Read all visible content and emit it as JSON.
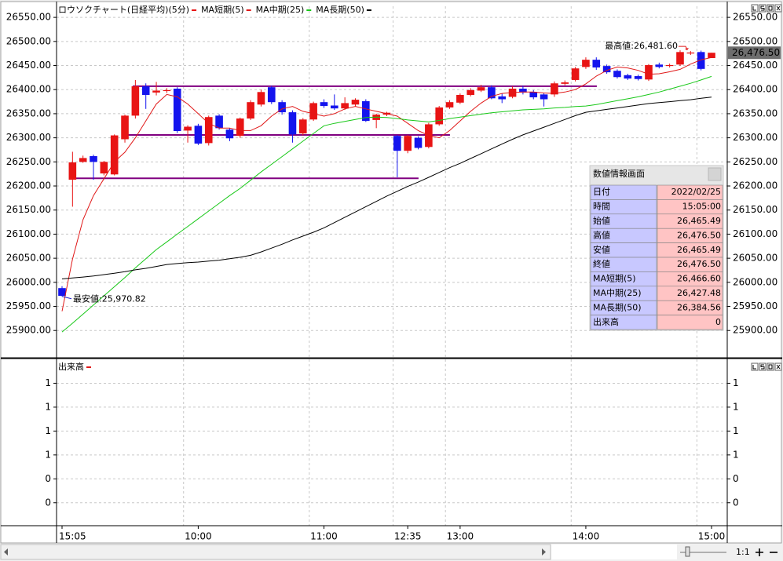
{
  "chart_data": [
    {
      "type": "candlestick",
      "title": "ロウソクチャート(日経平均)(5分)",
      "color_up": "#e81414",
      "color_down": "#1414ee",
      "categories": [
        "15:05",
        null,
        null,
        null,
        null,
        null,
        null,
        null,
        null,
        null,
        null,
        null,
        null,
        "10:00",
        null,
        null,
        null,
        null,
        null,
        null,
        null,
        null,
        null,
        null,
        null,
        "11:00",
        null,
        null,
        null,
        null,
        null,
        null,
        null,
        "12:35",
        null,
        null,
        null,
        null,
        "13:00",
        null,
        null,
        null,
        null,
        null,
        null,
        null,
        null,
        null,
        null,
        null,
        "14:00",
        null,
        null,
        null,
        null,
        null,
        null,
        null,
        null,
        null,
        null,
        null,
        "15:00"
      ],
      "open": [
        25988,
        26213,
        26250,
        26262,
        26226,
        26224,
        26297,
        26346,
        26407,
        26394,
        26397,
        26402,
        26315,
        26325,
        26289,
        26346,
        26317,
        26304,
        26340,
        26369,
        26405,
        26374,
        26353,
        26309,
        26338,
        26374,
        26367,
        26361,
        26369,
        26376,
        26337,
        26348,
        26304,
        26273,
        26300,
        26281,
        26328,
        26363,
        26373,
        26389,
        26398,
        26405,
        26386,
        26385,
        26402,
        26395,
        26390,
        26390,
        26412,
        26420,
        26447,
        26462,
        26449,
        26439,
        26430,
        26428,
        26421,
        26452,
        26449,
        26452,
        26475,
        26478,
        26465.49
      ],
      "high": [
        25992,
        26271,
        26263,
        26265,
        26252,
        26307,
        26348,
        26420,
        26413,
        26416,
        26403,
        26405,
        26326,
        26329,
        26346,
        26349,
        26320,
        26342,
        26378,
        26400,
        26408,
        26378,
        26357,
        26341,
        26375,
        26380,
        26390,
        26384,
        26382,
        26380,
        26350,
        26354,
        26306,
        26306,
        26303,
        26331,
        26366,
        26378,
        26392,
        26403,
        26410,
        26409,
        26392,
        26407,
        26408,
        26399,
        26393,
        26417,
        26419,
        26447,
        26467,
        26467,
        26452,
        26442,
        26433,
        26431,
        26453,
        26456,
        26454,
        26481.6,
        26480,
        26481,
        26476.5
      ],
      "low": [
        25970.82,
        26157,
        26248,
        26213,
        26222,
        26222,
        26290,
        26340,
        26360,
        26388,
        26393,
        26310,
        26290,
        26285,
        26284,
        26317,
        26293,
        26300,
        26337,
        26365,
        26370,
        26348,
        26290,
        26305,
        26335,
        26362,
        26358,
        26358,
        26365,
        26333,
        26320,
        26345,
        26218,
        26268,
        26276,
        26278,
        26325,
        26360,
        26370,
        26386,
        26395,
        26380,
        26372,
        26382,
        26390,
        26380,
        26365,
        26385,
        26409,
        26417,
        26443,
        26441,
        26433,
        26423,
        26420,
        26419,
        26418,
        26444,
        26446,
        26449,
        26472,
        26440,
        26465.49
      ],
      "close": [
        25972,
        26249,
        26258,
        26250,
        26250,
        26305,
        26346,
        26407,
        26389,
        26398,
        26399,
        26314,
        26323,
        26288,
        26343,
        26320,
        26299,
        26340,
        26374,
        26395,
        26374,
        26353,
        26307,
        26338,
        26372,
        26366,
        26361,
        26372,
        26379,
        26335,
        26348,
        26352,
        26273,
        26304,
        26279,
        26328,
        26363,
        26374,
        26389,
        26399,
        26405,
        26382,
        26380,
        26402,
        26394,
        26384,
        26380,
        26413,
        26415,
        26444,
        26462,
        26446,
        26436,
        26426,
        26423,
        26422,
        26451,
        26447,
        26451,
        26478,
        26477,
        26443,
        26476.5
      ],
      "series": [
        {
          "name": "MA短期(5)",
          "color": "#e01818",
          "values": [
            25940,
            26048,
            26130,
            26180,
            26215,
            26250,
            26270,
            26300,
            26335,
            26370,
            26390,
            26385,
            26370,
            26350,
            26330,
            26320,
            26320,
            26315,
            26315,
            26325,
            26345,
            26360,
            26365,
            26355,
            26350,
            26345,
            26350,
            26360,
            26365,
            26360,
            26355,
            26350,
            26345,
            26330,
            26315,
            26305,
            26300,
            26315,
            26335,
            26355,
            26372,
            26386,
            26392,
            26394,
            26395,
            26395,
            26393,
            26392,
            26395,
            26400,
            26412,
            26428,
            26440,
            26447,
            26445,
            26440,
            26432,
            26433,
            26437,
            26442,
            26453,
            26462,
            26466.6
          ]
        },
        {
          "name": "MA中期(25)",
          "color": "#18c818",
          "values": [
            25897,
            25915,
            25934,
            25953,
            25972,
            25991,
            26010,
            26030,
            26049,
            26068,
            26084,
            26100,
            26116,
            26132,
            26148,
            26164,
            26180,
            26195,
            26212,
            26229,
            26245,
            26261,
            26277,
            26293,
            26309,
            26325,
            26330,
            26334,
            26338,
            26342,
            26343,
            26342,
            26340,
            26337,
            26335,
            26333,
            26336,
            26340,
            26343,
            26346,
            26349,
            26352,
            26354,
            26356,
            26358,
            26359,
            26360,
            26362,
            26363,
            26365,
            26366,
            26369,
            26373,
            26377,
            26381,
            26385,
            26390,
            26395,
            26401,
            26407,
            26413,
            26420,
            26427.48
          ]
        },
        {
          "name": "MA長期(50)",
          "color": "#000000",
          "values": [
            26007,
            26009,
            26011,
            26013,
            26016,
            26019,
            26022,
            26026,
            26029,
            26033,
            26037,
            26039,
            26041,
            26042,
            26044,
            26046,
            26049,
            26052,
            26056,
            26063,
            26071,
            26079,
            26088,
            26096,
            26104,
            26113,
            26124,
            26135,
            26146,
            26157,
            26168,
            26179,
            26189,
            26199,
            26208,
            26218,
            26228,
            26238,
            26247,
            26257,
            26267,
            26277,
            26287,
            26297,
            26306,
            26314,
            26322,
            26330,
            26338,
            26346,
            26353,
            26356,
            26359,
            26362,
            26365,
            26368,
            26371,
            26373,
            26375,
            26377,
            26379,
            26382,
            26384.56
          ]
        }
      ],
      "ylim": [
        25845,
        26573
      ],
      "yticks": [
        {
          "value": 25900,
          "label": "25900.00"
        },
        {
          "value": 25950,
          "label": "25950.00"
        },
        {
          "value": 26000,
          "label": "26000.00"
        },
        {
          "value": 26050,
          "label": "26050.00"
        },
        {
          "value": 26100,
          "label": "26100.00"
        },
        {
          "value": 26150,
          "label": "26150.00"
        },
        {
          "value": 26200,
          "label": "26200.00"
        },
        {
          "value": 26250,
          "label": "26250.00"
        },
        {
          "value": 26300,
          "label": "26300.00"
        },
        {
          "value": 26350,
          "label": "26350.00"
        },
        {
          "value": 26400,
          "label": "26400.00"
        },
        {
          "value": 26450,
          "label": "26450.00"
        },
        {
          "value": 26500,
          "label": "26500.00"
        },
        {
          "value": 26550,
          "label": "26550.00"
        }
      ],
      "grid": true,
      "hlines": [
        {
          "value": 26407,
          "start": 6.75,
          "end": 51.05,
          "color": "#800080"
        },
        {
          "value": 26306,
          "start": 5.77,
          "end": 37.03,
          "color": "#800080"
        },
        {
          "value": 26216,
          "start": 1.2,
          "end": 34.03,
          "color": "#800080"
        }
      ],
      "annotations": [
        {
          "text": "最高値:26,481.60",
          "index": 59,
          "value": 26481.6,
          "color": "#e01818",
          "side": "left"
        },
        {
          "text": "最安値:25,970.82",
          "index": 0,
          "value": 25970.82,
          "color": "#2020d0",
          "side": "right"
        }
      ],
      "last_price": {
        "value": 26476.5,
        "label": "26,476.50"
      },
      "info_panel": {
        "title": "数値情報画面",
        "rows": [
          [
            "日付",
            "2022/02/25"
          ],
          [
            "時間",
            "15:05:00"
          ],
          [
            "始値",
            "26,465.49"
          ],
          [
            "高値",
            "26,476.50"
          ],
          [
            "安値",
            "26,465.49"
          ],
          [
            "終値",
            "26,476.50"
          ],
          [
            "MA短期(5)",
            "26,466.60"
          ],
          [
            "MA中期(25)",
            "26,427.48"
          ],
          [
            "MA長期(50)",
            "26,384.56"
          ],
          [
            "出来高",
            "0"
          ]
        ]
      }
    },
    {
      "type": "bar",
      "series": [
        {
          "name": "出来高",
          "color": "#e01818",
          "values": [
            0,
            0,
            0,
            0,
            0,
            0,
            0,
            0,
            0,
            0,
            0,
            0,
            0,
            0,
            0,
            0,
            0,
            0,
            0,
            0,
            0,
            0,
            0,
            0,
            0,
            0,
            0,
            0,
            0,
            0,
            0,
            0,
            0,
            0,
            0,
            0,
            0,
            0,
            0,
            0,
            0,
            0,
            0,
            0,
            0,
            0,
            0,
            0,
            0,
            0,
            0,
            0,
            0,
            0,
            0,
            0,
            0,
            0,
            0,
            0,
            0,
            0,
            0
          ]
        }
      ],
      "ylim": [
        -0.24,
        1.5
      ],
      "yticks": [
        {
          "value": 1.25,
          "label": "1"
        },
        {
          "value": 1,
          "label": "1"
        },
        {
          "value": 0.75,
          "label": "1"
        },
        {
          "value": 0.5,
          "label": "1"
        },
        {
          "value": 0.25,
          "label": "0"
        },
        {
          "value": 0,
          "label": "0"
        }
      ],
      "grid": true
    }
  ],
  "controls": {
    "zoom": "1:1"
  }
}
